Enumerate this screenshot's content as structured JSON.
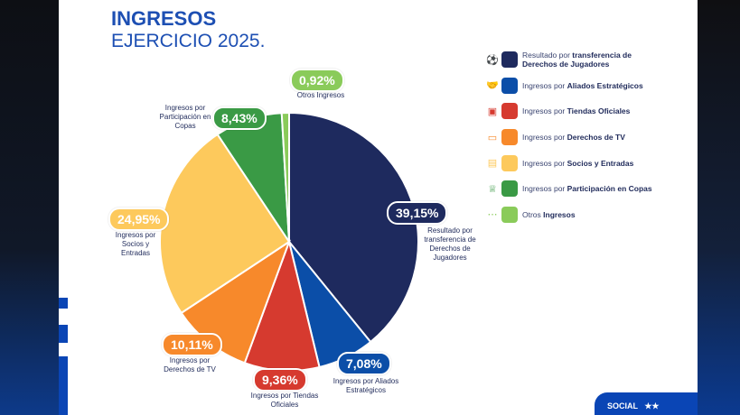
{
  "header": {
    "title": "INGRESOS",
    "subtitle": "EJERCICIO 2025."
  },
  "chart_data": {
    "type": "pie",
    "title": "INGRESOS",
    "subtitle": "EJERCICIO 2025.",
    "start": "12 o'clock, clockwise",
    "slices": [
      {
        "label": "Resultado por transferencia de Derechos de Jugadores",
        "value": 39.15,
        "text": "39,15%",
        "color": "#1e2a5e"
      },
      {
        "label": "Ingresos por Aliados Estratégicos",
        "value": 7.08,
        "text": "7,08%",
        "color": "#0b4ea8"
      },
      {
        "label": "Ingresos por Tiendas Oficiales",
        "value": 9.36,
        "text": "9,36%",
        "color": "#d63a2f"
      },
      {
        "label": "Ingresos por Derechos de TV",
        "value": 10.11,
        "text": "10,11%",
        "color": "#f7892b"
      },
      {
        "label": "Ingresos por Socios y Entradas",
        "value": 24.95,
        "text": "24,95%",
        "color": "#fdc95c"
      },
      {
        "label": "Ingresos por Participación en Copas",
        "value": 8.43,
        "text": "8,43%",
        "color": "#3a9a45"
      },
      {
        "label": "Otros Ingresos",
        "value": 0.92,
        "text": "0,92%",
        "color": "#8acb5a"
      }
    ],
    "labels": [
      "Resultado por transferencia de Derechos de Jugadores",
      "Ingresos por Aliados Estratégicos",
      "Ingresos por Tiendas Oficiales",
      "Ingresos por Derechos de TV",
      "Ingresos por Socios y Entradas",
      "Ingresos por Participación en Copas",
      "Otros Ingresos"
    ]
  },
  "legend": [
    {
      "icon": "soccer-ball-icon",
      "pre": "Resultado por ",
      "bold": "transferencia de Derechos de Jugadores"
    },
    {
      "icon": "handshake-icon",
      "pre": "Ingresos por ",
      "bold": "Aliados Estratégicos"
    },
    {
      "icon": "store-icon",
      "pre": "Ingresos por ",
      "bold": "Tiendas Oficiales"
    },
    {
      "icon": "tv-icon",
      "pre": "Ingresos por ",
      "bold": "Derechos de TV"
    },
    {
      "icon": "ticket-icon",
      "pre": "Ingresos por ",
      "bold": "Socios y Entradas"
    },
    {
      "icon": "trophy-icon",
      "pre": "Ingresos por ",
      "bold": "Participación en Copas"
    },
    {
      "icon": "dots-icon",
      "pre": "Otros ",
      "bold": "Ingresos"
    }
  ],
  "footer": {
    "logo_text": "SOCIAL"
  }
}
